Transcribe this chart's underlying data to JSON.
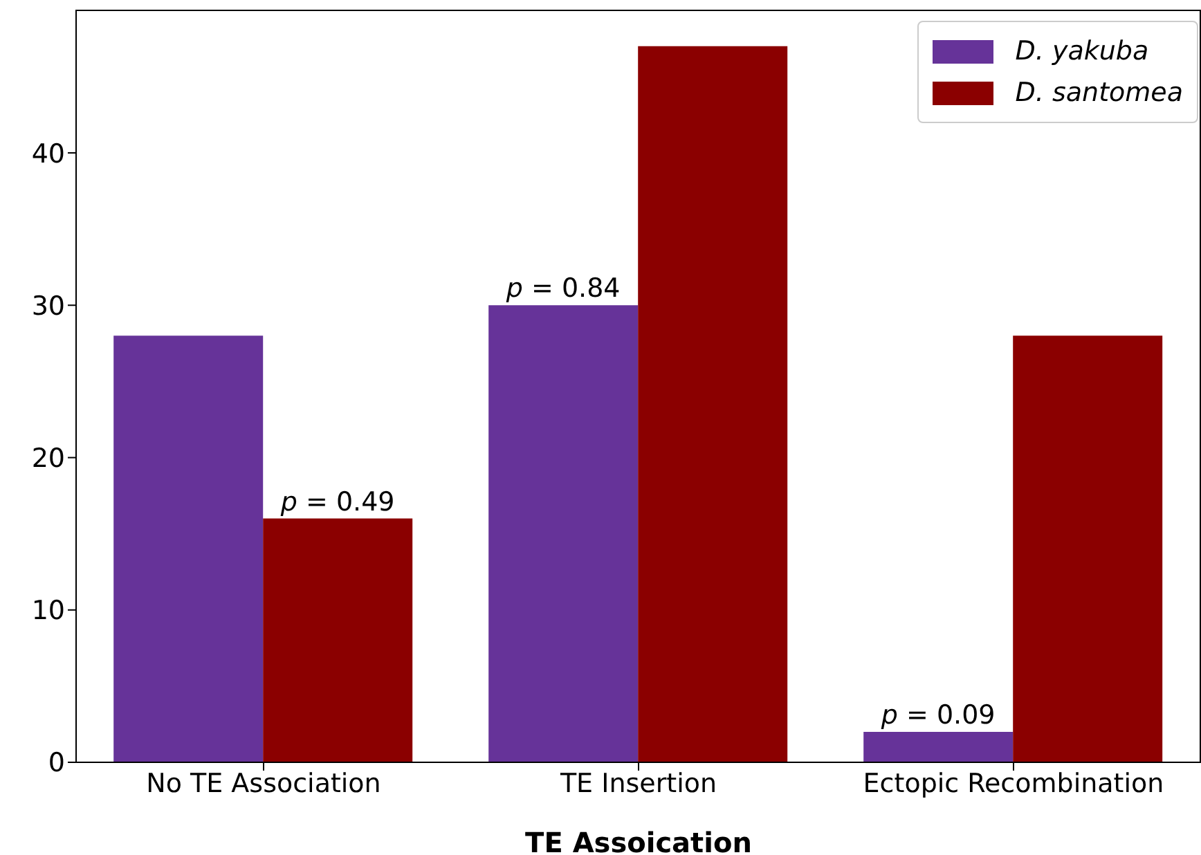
{
  "chart_data": {
    "type": "bar",
    "xlabel": "TE Assoication",
    "categories": [
      "No TE Association",
      "TE Insertion",
      "Ectopic Recombination"
    ],
    "series": [
      {
        "name": "D. yakuba",
        "color": "#663399",
        "values": [
          28,
          30,
          2
        ]
      },
      {
        "name": "D. santomea",
        "color": "#8b0000",
        "values": [
          16,
          47,
          28
        ]
      }
    ],
    "ylim": [
      0,
      49.4
    ],
    "yticks": [
      0,
      10,
      20,
      30,
      40
    ],
    "grid": false,
    "legend": "top right",
    "annotations": [
      {
        "text": "p = 0.49",
        "x": "No TE Association",
        "y": 16
      },
      {
        "text": "p = 0.84",
        "x": "TE Insertion",
        "y": 30
      },
      {
        "text": "p = 0.09",
        "x": "Ectopic Recombination",
        "y": 2
      }
    ]
  }
}
